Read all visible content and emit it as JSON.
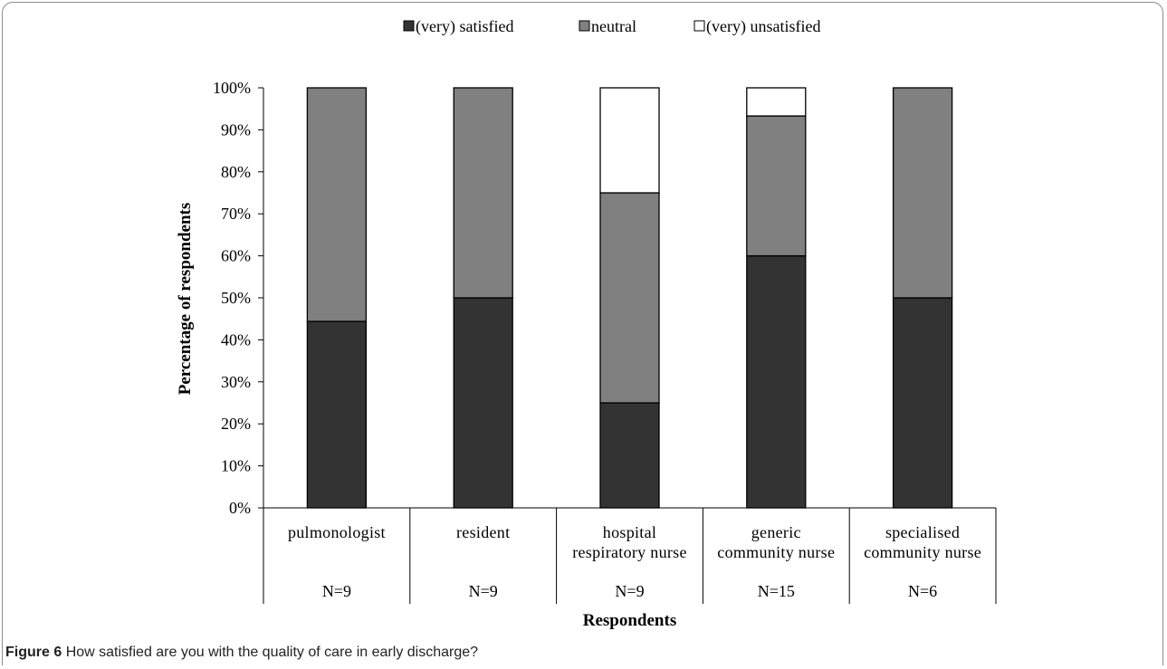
{
  "chart_data": {
    "type": "bar",
    "stacked": true,
    "percent_stacked": true,
    "categories": [
      [
        "pulmonologist"
      ],
      [
        "resident"
      ],
      [
        "hospital",
        "respiratory nurse"
      ],
      [
        "generic",
        "community nurse"
      ],
      [
        "specialised",
        "community nurse"
      ]
    ],
    "sample_sizes": [
      "N=9",
      "N=9",
      "N=9",
      "N=15",
      "N=6"
    ],
    "series": [
      {
        "name": "(very) satisfied",
        "color": "#333333",
        "values": [
          44.4,
          50,
          25,
          60,
          50
        ]
      },
      {
        "name": "neutral",
        "color": "#808080",
        "values": [
          55.6,
          50,
          50,
          33.3,
          50
        ]
      },
      {
        "name": "(very) unsatisfied",
        "color": "#ffffff",
        "values": [
          0,
          0,
          25,
          6.7,
          0
        ]
      }
    ],
    "xlabel": "Respondents",
    "ylabel": "Percentage of respondents",
    "ylim": [
      0,
      100
    ],
    "yticks": [
      "0%",
      "10%",
      "20%",
      "30%",
      "40%",
      "50%",
      "60%",
      "70%",
      "80%",
      "90%",
      "100%"
    ],
    "legend_position": "top",
    "grid": false
  },
  "caption": {
    "label": "Figure 6",
    "text": "How satisfied are you with the quality of care in early discharge?"
  }
}
